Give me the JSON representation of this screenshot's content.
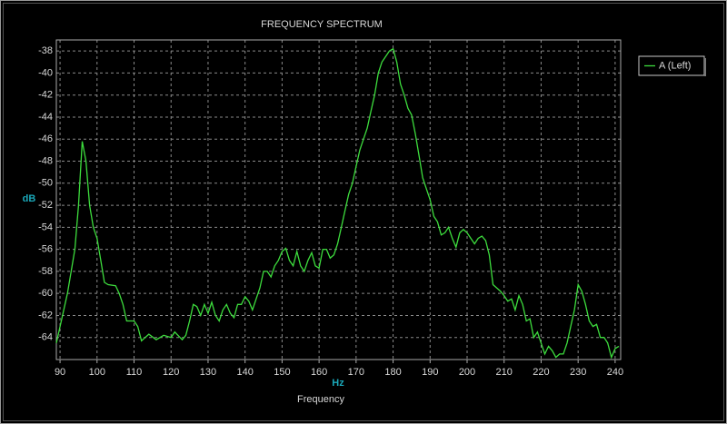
{
  "chart_data": {
    "type": "line",
    "title": "FREQUENCY SPECTRUM",
    "ylabel": "dB",
    "xunit": "Hz",
    "xlabel": "Frequency",
    "x": [
      89,
      90,
      92,
      94,
      95,
      96,
      97,
      98,
      99,
      100,
      101,
      102,
      103,
      105,
      106,
      107,
      108,
      110,
      111,
      112,
      113,
      114,
      116,
      118,
      120,
      121,
      123,
      124,
      125,
      126,
      127,
      128,
      129,
      130,
      131,
      132,
      133,
      134,
      135,
      136,
      137,
      138,
      139,
      140,
      141,
      142,
      143,
      144,
      145,
      146,
      147,
      148,
      149,
      150,
      151,
      152,
      153,
      154,
      155,
      156,
      157,
      158,
      159,
      160,
      161,
      162,
      163,
      164,
      165,
      166,
      167,
      168,
      169,
      170,
      171,
      172,
      173,
      174,
      175,
      176,
      177,
      178,
      179,
      180,
      181,
      182,
      183,
      184,
      185,
      186,
      187,
      188,
      189,
      190,
      191,
      192,
      193,
      194,
      195,
      196,
      197,
      198,
      199,
      200,
      201,
      202,
      203,
      204,
      205,
      206,
      207,
      208,
      209,
      210,
      211,
      212,
      213,
      214,
      215,
      216,
      217,
      218,
      219,
      220,
      221,
      222,
      223,
      224,
      225,
      226,
      227,
      228,
      229,
      230,
      231,
      232,
      233,
      234,
      235,
      236,
      237,
      238,
      239,
      240,
      241
    ],
    "series": [
      {
        "name": "A (Left)",
        "color": "#3ddc3d",
        "values": [
          -64.5,
          -63,
          -60,
          -56,
          -52,
          -46.2,
          -48,
          -52,
          -54,
          -55,
          -57,
          -59,
          -59.2,
          -59.3,
          -60,
          -61,
          -62.5,
          -62.5,
          -63,
          -64.3,
          -64,
          -63.7,
          -64.2,
          -63.8,
          -64,
          -63.5,
          -64.2,
          -63.8,
          -62.5,
          -61,
          -61.2,
          -62,
          -61,
          -61.8,
          -60.8,
          -62,
          -62.5,
          -61.5,
          -61,
          -61.8,
          -62.2,
          -61,
          -61,
          -60.3,
          -60.7,
          -61.5,
          -60.5,
          -59.5,
          -58,
          -58,
          -58.5,
          -57.5,
          -57,
          -56.2,
          -55.9,
          -57,
          -57.5,
          -56.2,
          -57.5,
          -58,
          -57,
          -56.3,
          -57.5,
          -57.7,
          -56,
          -56,
          -56.8,
          -56.5,
          -55.5,
          -54,
          -52.5,
          -51,
          -50,
          -48.5,
          -47,
          -46,
          -45,
          -43.5,
          -42,
          -40,
          -39,
          -38.5,
          -38,
          -37.8,
          -39,
          -41,
          -42,
          -43.2,
          -43.8,
          -45.5,
          -47.5,
          -49.5,
          -50.5,
          -51.5,
          -53,
          -53.5,
          -54.7,
          -54.5,
          -54,
          -55,
          -55.8,
          -54.5,
          -54.2,
          -54.5,
          -55,
          -55.5,
          -55,
          -54.8,
          -55.2,
          -56.5,
          -59.2,
          -59.5,
          -59.8,
          -60.2,
          -60.7,
          -60.5,
          -61.5,
          -60.2,
          -61,
          -62.5,
          -62.3,
          -64,
          -63.5,
          -64.5,
          -65.5,
          -64.8,
          -65.2,
          -65.8,
          -65.5,
          -65.5,
          -64.5,
          -63,
          -61.5,
          -59.2,
          -59.8,
          -61,
          -62.5,
          -63,
          -62.8,
          -64,
          -64,
          -64.5,
          -65.8,
          -65,
          -64.8
        ]
      }
    ],
    "xlim": [
      89,
      241.5
    ],
    "xticks": [
      90,
      100,
      110,
      120,
      130,
      140,
      150,
      160,
      170,
      180,
      190,
      200,
      210,
      220,
      230,
      240
    ],
    "ylim": [
      -66,
      -37
    ],
    "yticks": [
      -38,
      -40,
      -42,
      -44,
      -46,
      -48,
      -50,
      -52,
      -54,
      -56,
      -58,
      -60,
      -62,
      -64
    ],
    "grid": true,
    "legend": "upper right"
  }
}
